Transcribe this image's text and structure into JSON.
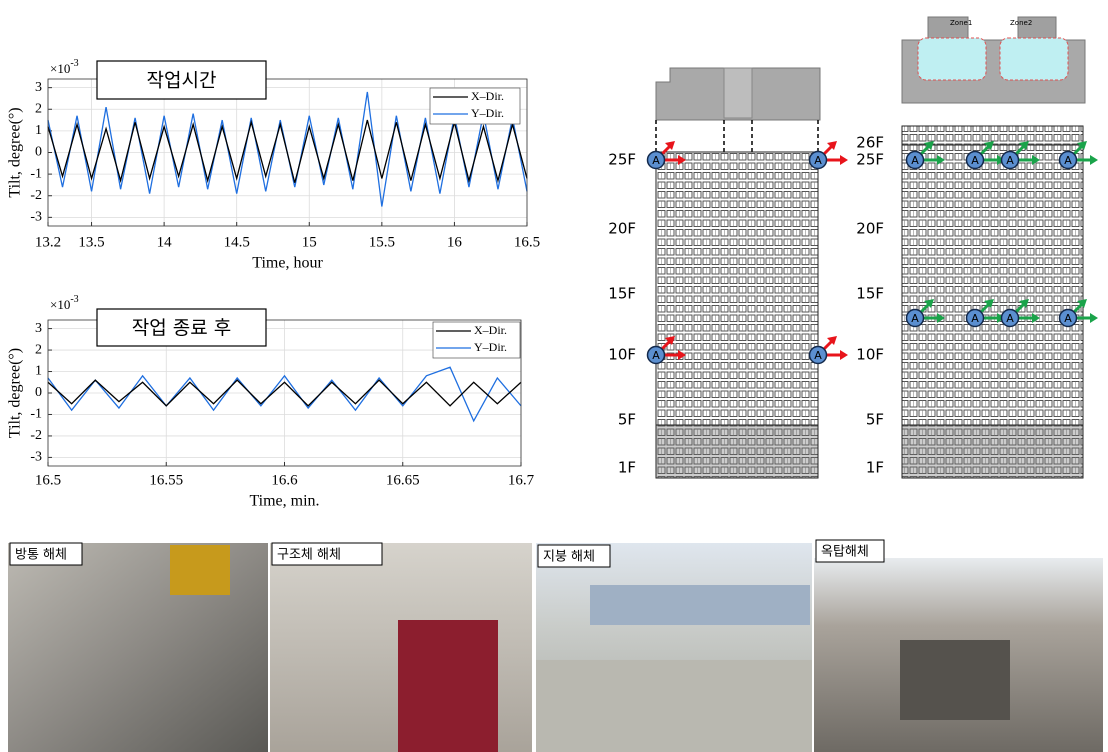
{
  "chart_data": [
    {
      "type": "line",
      "annotation": "작업시간",
      "y_multiplier": {
        "base": "×10",
        "exponent": "-3"
      },
      "ylabel": "Tilt, degree(°)",
      "xlabel": "Time, hour",
      "xlim": [
        13.2,
        16.5
      ],
      "xticks": [
        13.2,
        13.5,
        14,
        14.5,
        15,
        15.5,
        16,
        16.5
      ],
      "ylim": [
        -3.4,
        3.4
      ],
      "yticks": [
        -3,
        -2,
        -1,
        0,
        1,
        2,
        3
      ],
      "grid": true,
      "legend": "upper right",
      "x": [
        13.2,
        13.3,
        13.4,
        13.5,
        13.6,
        13.7,
        13.8,
        13.9,
        14.0,
        14.1,
        14.2,
        14.3,
        14.4,
        14.5,
        14.6,
        14.7,
        14.8,
        14.9,
        15.0,
        15.1,
        15.2,
        15.3,
        15.4,
        15.5,
        15.6,
        15.7,
        15.8,
        15.9,
        16.0,
        16.1,
        16.2,
        16.3,
        16.4,
        16.5
      ],
      "series": [
        {
          "name": "X–Dir.",
          "color": "#000000",
          "values": [
            1.2,
            -1.1,
            1.3,
            -1.2,
            1.1,
            -1.3,
            1.4,
            -1.2,
            1.2,
            -1.1,
            1.3,
            -1.3,
            1.2,
            -1.2,
            1.4,
            -1.1,
            1.3,
            -1.4,
            1.2,
            -1.2,
            1.3,
            -1.3,
            1.5,
            -1.2,
            1.4,
            -1.3,
            1.3,
            -1.2,
            1.4,
            -1.3,
            1.2,
            -1.3,
            1.3,
            -1.2
          ]
        },
        {
          "name": "Y–Dir.",
          "color": "#1f6fe0",
          "values": [
            1.5,
            -1.6,
            1.7,
            -1.8,
            2.1,
            -1.7,
            1.6,
            -1.9,
            1.7,
            -1.6,
            1.8,
            -1.7,
            1.5,
            -1.9,
            1.6,
            -1.8,
            1.5,
            -1.6,
            1.7,
            -1.5,
            1.6,
            -1.7,
            2.8,
            -2.5,
            1.7,
            -1.8,
            1.6,
            -1.9,
            1.7,
            -1.6,
            1.8,
            -1.7,
            1.6,
            -1.8
          ]
        }
      ]
    },
    {
      "type": "line",
      "annotation": "작업 종료 후",
      "y_multiplier": {
        "base": "×10",
        "exponent": "-3"
      },
      "ylabel": "Tilt, degree(°)",
      "xlabel": "Time, min.",
      "xlim": [
        16.5,
        16.7
      ],
      "xticks": [
        16.5,
        16.55,
        16.6,
        16.65,
        16.7
      ],
      "ylim": [
        -3.4,
        3.4
      ],
      "yticks": [
        -3,
        -2,
        -1,
        0,
        1,
        2,
        3
      ],
      "grid": true,
      "legend": "upper right",
      "x": [
        16.5,
        16.51,
        16.52,
        16.53,
        16.54,
        16.55,
        16.56,
        16.57,
        16.58,
        16.59,
        16.6,
        16.61,
        16.62,
        16.63,
        16.64,
        16.65,
        16.66,
        16.67,
        16.68,
        16.69,
        16.7
      ],
      "series": [
        {
          "name": "X–Dir.",
          "color": "#000000",
          "values": [
            0.5,
            -0.5,
            0.6,
            -0.4,
            0.5,
            -0.6,
            0.5,
            -0.5,
            0.6,
            -0.5,
            0.5,
            -0.6,
            0.5,
            -0.5,
            0.6,
            -0.5,
            0.5,
            -0.6,
            0.5,
            -0.5,
            0.5
          ]
        },
        {
          "name": "Y–Dir.",
          "color": "#1f6fe0",
          "values": [
            0.7,
            -0.8,
            0.6,
            -0.7,
            0.8,
            -0.6,
            0.7,
            -0.8,
            0.7,
            -0.6,
            0.8,
            -0.7,
            0.6,
            -0.8,
            0.7,
            -0.6,
            0.8,
            1.2,
            -1.3,
            0.7,
            -0.6
          ]
        }
      ]
    }
  ],
  "sensor_label": "A",
  "buildings": [
    {
      "floors": [
        "25F",
        "20F",
        "15F",
        "10F",
        "5F",
        "1F"
      ]
    },
    {
      "floors": [
        "26F",
        "25F",
        "20F",
        "15F",
        "10F",
        "5F",
        "1F"
      ],
      "zones": [
        "Zone1",
        "Zone2"
      ]
    }
  ],
  "photos": [
    {
      "caption": "방통 해체"
    },
    {
      "caption": "구조체 해체"
    },
    {
      "caption": "지붕 해체"
    },
    {
      "caption": "옥탑해체"
    }
  ]
}
